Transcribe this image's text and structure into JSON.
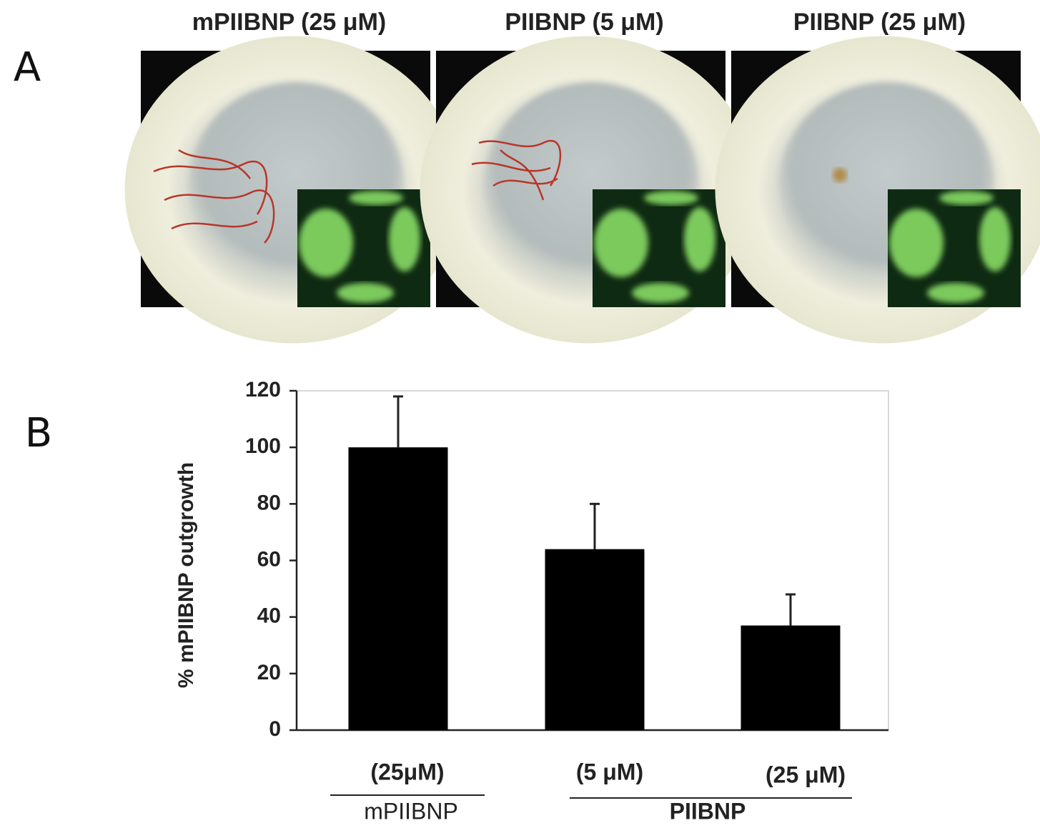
{
  "panel_a": {
    "label": "A",
    "titles": [
      "mPIIBNP (25 μM)",
      "PIIBNP (5 μM)",
      "PIIBNP (25 μM)"
    ]
  },
  "panel_b": {
    "label": "B"
  },
  "chart_data": {
    "type": "bar",
    "ylabel": "% mPIIBNP outgrowth",
    "categories": [
      "(25μM)",
      "(5 μM)",
      "(25 μM)"
    ],
    "groups": [
      "mPIIBNP",
      "PIIBNP"
    ],
    "values": [
      100,
      64,
      37
    ],
    "errors": [
      18,
      16,
      11
    ],
    "color": "#000000",
    "ylim": [
      0,
      120
    ],
    "yticks": [
      0,
      20,
      40,
      60,
      80,
      100,
      120
    ],
    "grid": false
  }
}
